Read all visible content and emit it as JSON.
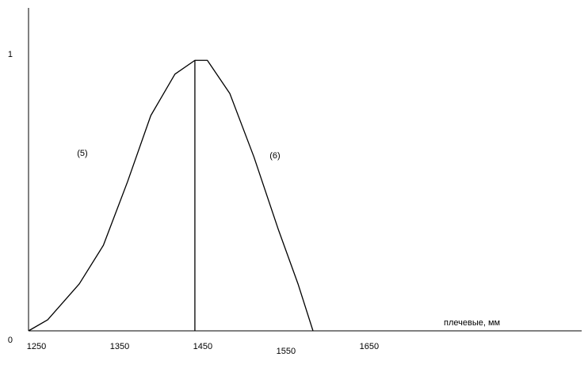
{
  "chart_data": {
    "type": "line",
    "x": [
      1250,
      1273,
      1311,
      1340,
      1369,
      1397,
      1426,
      1450,
      1465,
      1492,
      1521,
      1550,
      1574,
      1592
    ],
    "series": [
      {
        "color": "#000000",
        "values": [
          0,
          0.04,
          0.17,
          0.31,
          0.54,
          0.78,
          0.93,
          0.98,
          0.98,
          0.86,
          0.63,
          0.37,
          0.17,
          0
        ]
      }
    ],
    "vline": 1450,
    "xlim": [
      1250,
      1915
    ],
    "xticks": [
      1250,
      1350,
      1450,
      1550,
      1650
    ],
    "ylim": [
      0,
      1.17
    ],
    "yticks": [
      0,
      1
    ],
    "annotations": [
      "(5)",
      "(6)",
      "плечевые, мм"
    ],
    "grid": false
  }
}
